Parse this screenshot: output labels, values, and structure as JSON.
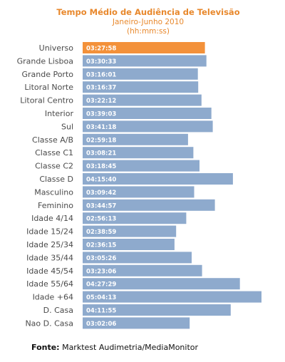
{
  "chart_data": {
    "type": "bar",
    "orientation": "horizontal",
    "title": "Tempo Médio de Audiência  de Televisão",
    "subtitle": "Janeiro-Junho 2010",
    "unit_label": "(hh:mm:ss)",
    "categories": [
      "Universo",
      "Grande Lisboa",
      "Grande Porto",
      "Litoral Norte",
      "Litoral Centro",
      "Interior",
      "Sul",
      "Classe A/B",
      "Classe C1",
      "Classe C2",
      "Classe D",
      "Masculino",
      "Feminino",
      "Idade 4/14",
      "Idade 15/24",
      "Idade 25/34",
      "Idade 35/44",
      "Idade 45/54",
      "Idade 55/64",
      "Idade +64",
      "D. Casa",
      "Nao D. Casa"
    ],
    "value_labels": [
      "03:27:58",
      "03:30:33",
      "03:16:01",
      "03:16:37",
      "03:22:12",
      "03:39:03",
      "03:41:18",
      "02:59:18",
      "03:08:21",
      "03:18:45",
      "04:15:40",
      "03:09:42",
      "03:44:57",
      "02:56:13",
      "02:38:59",
      "02:36:15",
      "03:05:26",
      "03:23:06",
      "04:27:29",
      "05:04:13",
      "04:11:55",
      "03:02:06"
    ],
    "values_seconds": [
      12478,
      12633,
      11761,
      11797,
      12132,
      13143,
      13278,
      10758,
      11301,
      11925,
      15340,
      11382,
      13497,
      10573,
      9539,
      9375,
      11126,
      12186,
      16049,
      18253,
      15115,
      10926
    ],
    "highlight_index": 0,
    "colors": {
      "bar": "#8eaacd",
      "highlight": "#f3913a",
      "title": "#e8882c"
    },
    "legend": "none",
    "grid": false
  },
  "footer": {
    "source_label": "Fonte:",
    "source_text": " Marktest Audimetria/MediaMonitor"
  }
}
